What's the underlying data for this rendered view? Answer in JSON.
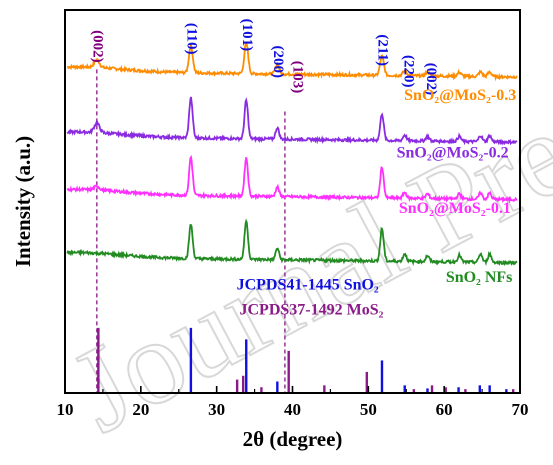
{
  "watermark": "Journal Pre-proof",
  "chart_data": {
    "type": "line",
    "xlabel": "2θ (degree)",
    "ylabel": "Intensity (a.u.)",
    "xlim": [
      10,
      70
    ],
    "xticks": [
      10,
      20,
      30,
      40,
      50,
      60,
      70
    ],
    "yticks_shown": false,
    "series": [
      {
        "name": "SnO₂@MoS₂-0.3",
        "color": "#ff8c00",
        "baseline": 0.84,
        "peaks": [
          {
            "x": 14.2,
            "h": 0.02,
            "w": 0.7
          },
          {
            "x": 26.6,
            "h": 0.07,
            "w": 0.5
          },
          {
            "x": 33.9,
            "h": 0.08,
            "w": 0.5
          },
          {
            "x": 38.0,
            "h": 0.025,
            "w": 0.5
          },
          {
            "x": 51.8,
            "h": 0.05,
            "w": 0.5
          },
          {
            "x": 54.8,
            "h": 0.012,
            "w": 0.5
          },
          {
            "x": 57.8,
            "h": 0.01,
            "w": 0.5
          },
          {
            "x": 62.0,
            "h": 0.01,
            "w": 0.5
          },
          {
            "x": 64.8,
            "h": 0.012,
            "w": 0.5
          },
          {
            "x": 66.0,
            "h": 0.012,
            "w": 0.5
          }
        ]
      },
      {
        "name": "SnO₂@MoS₂-0.2",
        "color": "#8a2be2",
        "baseline": 0.67,
        "peaks": [
          {
            "x": 14.2,
            "h": 0.025,
            "w": 0.7
          },
          {
            "x": 26.6,
            "h": 0.105,
            "w": 0.45
          },
          {
            "x": 33.9,
            "h": 0.1,
            "w": 0.45
          },
          {
            "x": 38.0,
            "h": 0.03,
            "w": 0.45
          },
          {
            "x": 51.8,
            "h": 0.07,
            "w": 0.45
          },
          {
            "x": 54.8,
            "h": 0.015,
            "w": 0.45
          },
          {
            "x": 57.8,
            "h": 0.012,
            "w": 0.45
          },
          {
            "x": 62.0,
            "h": 0.013,
            "w": 0.45
          },
          {
            "x": 64.8,
            "h": 0.016,
            "w": 0.45
          },
          {
            "x": 66.0,
            "h": 0.016,
            "w": 0.45
          }
        ]
      },
      {
        "name": "SnO₂@MoS₂-0.1",
        "color": "#ff30ff",
        "baseline": 0.52,
        "peaks": [
          {
            "x": 14.2,
            "h": 0.01,
            "w": 0.7
          },
          {
            "x": 26.6,
            "h": 0.1,
            "w": 0.45
          },
          {
            "x": 33.9,
            "h": 0.1,
            "w": 0.45
          },
          {
            "x": 38.0,
            "h": 0.025,
            "w": 0.45
          },
          {
            "x": 51.8,
            "h": 0.08,
            "w": 0.45
          },
          {
            "x": 54.8,
            "h": 0.015,
            "w": 0.45
          },
          {
            "x": 57.8,
            "h": 0.012,
            "w": 0.45
          },
          {
            "x": 62.0,
            "h": 0.013,
            "w": 0.45
          },
          {
            "x": 64.8,
            "h": 0.016,
            "w": 0.45
          },
          {
            "x": 66.0,
            "h": 0.016,
            "w": 0.45
          }
        ]
      },
      {
        "name": "SnO₂ NFs",
        "color": "#228b22",
        "baseline": 0.355,
        "peaks": [
          {
            "x": 26.6,
            "h": 0.09,
            "w": 0.45
          },
          {
            "x": 33.9,
            "h": 0.1,
            "w": 0.45
          },
          {
            "x": 38.0,
            "h": 0.03,
            "w": 0.45
          },
          {
            "x": 51.8,
            "h": 0.085,
            "w": 0.45
          },
          {
            "x": 54.8,
            "h": 0.02,
            "w": 0.45
          },
          {
            "x": 57.8,
            "h": 0.015,
            "w": 0.45
          },
          {
            "x": 62.0,
            "h": 0.018,
            "w": 0.45
          },
          {
            "x": 64.8,
            "h": 0.022,
            "w": 0.45
          },
          {
            "x": 66.0,
            "h": 0.022,
            "w": 0.45
          }
        ]
      }
    ],
    "reference_patterns": [
      {
        "name": "JCPDS41-1445 SnO₂",
        "color": "#1010e0",
        "sticks": [
          [
            26.6,
            0.17
          ],
          [
            33.9,
            0.14
          ],
          [
            38.0,
            0.03
          ],
          [
            51.8,
            0.085
          ],
          [
            54.8,
            0.02
          ],
          [
            57.8,
            0.012
          ],
          [
            61.9,
            0.015
          ],
          [
            64.7,
            0.02
          ],
          [
            66.0,
            0.02
          ],
          [
            68.2,
            0.01
          ]
        ]
      },
      {
        "name": "JCPDS37-1492 MoS₂",
        "color": "#8b1a89",
        "sticks": [
          [
            14.4,
            0.17
          ],
          [
            32.7,
            0.035
          ],
          [
            33.5,
            0.045
          ],
          [
            35.9,
            0.015
          ],
          [
            39.5,
            0.11
          ],
          [
            44.2,
            0.02
          ],
          [
            49.8,
            0.055
          ],
          [
            56.0,
            0.01
          ],
          [
            58.4,
            0.02
          ],
          [
            60.2,
            0.015
          ],
          [
            62.8,
            0.01
          ],
          [
            69.1,
            0.01
          ]
        ]
      }
    ],
    "annotations": [
      {
        "text": "(002)",
        "x": 14.2,
        "y": 0.905,
        "color": "#800080",
        "rotate": true
      },
      {
        "text": "(110)",
        "x": 26.6,
        "y": 0.925,
        "color": "#1010e0",
        "rotate": true
      },
      {
        "text": "(101)",
        "x": 33.9,
        "y": 0.935,
        "color": "#1010e0",
        "rotate": true
      },
      {
        "text": "(200)",
        "x": 38.0,
        "y": 0.865,
        "color": "#1010e0",
        "rotate": true
      },
      {
        "text": "(103)",
        "x": 40.6,
        "y": 0.825,
        "color": "#800080",
        "rotate": true
      },
      {
        "text": "(211)",
        "x": 51.8,
        "y": 0.895,
        "color": "#1010e0",
        "rotate": true
      },
      {
        "text": "(220)",
        "x": 55.2,
        "y": 0.84,
        "color": "#1010e0",
        "rotate": true
      },
      {
        "text": "(002)",
        "x": 58.2,
        "y": 0.82,
        "color": "#1010e0",
        "rotate": true
      }
    ],
    "dashed_guides": [
      {
        "x": 14.2,
        "y_top": 0.845,
        "color": "#800080"
      },
      {
        "x": 39.0,
        "y_top": 0.735,
        "color": "#800080"
      }
    ],
    "series_labels": [
      {
        "text": "SnO₂@MoS₂-0.3",
        "color": "#ff8c00",
        "x": 69.5,
        "y": 0.765
      },
      {
        "text": "SnO₂@MoS₂-0.2",
        "color": "#8a2be2",
        "x": 68.5,
        "y": 0.615
      },
      {
        "text": "SnO₂@MoS₂-0.1",
        "color": "#ff30ff",
        "x": 68.8,
        "y": 0.47
      },
      {
        "text": "SnO₂ NFs",
        "color": "#228b22",
        "x": 69.0,
        "y": 0.29
      }
    ],
    "reference_labels": [
      {
        "text": "JCPDS41-1445 SnO₂",
        "color": "#1010e0",
        "x": 42.0,
        "y": 0.27
      },
      {
        "text": "JCPDS37-1492 MoS₂",
        "color": "#8b1a89",
        "x": 42.5,
        "y": 0.205
      }
    ]
  }
}
